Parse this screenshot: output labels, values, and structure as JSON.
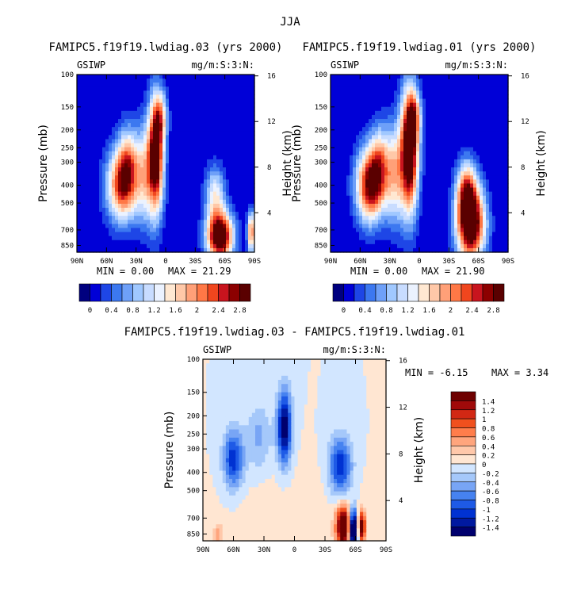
{
  "season": "JJA",
  "chart_data": [
    {
      "type": "heatmap",
      "title": "FAMIPC5.f19f19.lwdiag.03 (yrs 2000)",
      "left_label": "GSIWP",
      "right_label": "mg/m:S:3:N:",
      "ylabel": "Pressure (mb)",
      "ylabel_right": "Height (km)",
      "x_ticks": [
        "90N",
        "60N",
        "30N",
        "0",
        "30S",
        "60S",
        "90S"
      ],
      "x_values": [
        90,
        60,
        30,
        0,
        -30,
        -60,
        -90
      ],
      "y_ticks": [
        "100",
        "150",
        "200",
        "250",
        "300",
        "400",
        "500",
        "700",
        "850"
      ],
      "y_values": [
        100,
        150,
        200,
        250,
        300,
        400,
        500,
        700,
        850
      ],
      "ylim": [
        100,
        925
      ],
      "height_ticks": [
        "16",
        "12",
        "8",
        "4"
      ],
      "height_values": [
        16,
        12,
        8,
        4
      ],
      "min_text": "MIN =    0.00",
      "max_text": "MAX =   21.29",
      "min": 0.0,
      "max": 21.29,
      "colorbar_labels": [
        "0",
        "0.4",
        "0.8",
        "1.2",
        "1.6",
        "2",
        "2.4",
        "2.8"
      ],
      "levels": [
        0,
        0.2,
        0.4,
        0.6,
        0.8,
        1.0,
        1.2,
        1.4,
        1.6,
        1.8,
        2.0,
        2.2,
        2.4,
        2.6,
        2.8
      ],
      "features": [
        {
          "lat": 45,
          "p": 400,
          "amp": 2.3,
          "dlat": 15,
          "dlnp": 0.45
        },
        {
          "lat": 38,
          "p": 300,
          "amp": 1.4,
          "dlat": 10,
          "dlnp": 0.45
        },
        {
          "lat": 10,
          "p": 280,
          "amp": 3.2,
          "dlat": 8,
          "dlnp": 0.7
        },
        {
          "lat": 22,
          "p": 350,
          "amp": 1.3,
          "dlat": 10,
          "dlnp": 0.6
        },
        {
          "lat": 5,
          "p": 170,
          "amp": 1.2,
          "dlat": 7,
          "dlnp": 0.3
        },
        {
          "lat": -55,
          "p": 760,
          "amp": 3.5,
          "dlat": 13,
          "dlnp": 0.3
        },
        {
          "lat": -50,
          "p": 450,
          "amp": 1.3,
          "dlat": 10,
          "dlnp": 0.35
        },
        {
          "lat": -87,
          "p": 720,
          "amp": 2.2,
          "dlat": 4,
          "dlnp": 0.25
        }
      ]
    },
    {
      "type": "heatmap",
      "title": "FAMIPC5.f19f19.lwdiag.01 (yrs 2000)",
      "left_label": "GSIWP",
      "right_label": "mg/m:S:3:N:",
      "ylabel": "Pressure (mb)",
      "ylabel_right": "Height (km)",
      "x_ticks": [
        "90N",
        "60N",
        "30N",
        "0",
        "30S",
        "60S",
        "90S"
      ],
      "x_values": [
        90,
        60,
        30,
        0,
        -30,
        -60,
        -90
      ],
      "y_ticks": [
        "100",
        "150",
        "200",
        "250",
        "300",
        "400",
        "500",
        "700",
        "850"
      ],
      "y_values": [
        100,
        150,
        200,
        250,
        300,
        400,
        500,
        700,
        850
      ],
      "ylim": [
        100,
        925
      ],
      "height_ticks": [
        "16",
        "12",
        "8",
        "4"
      ],
      "height_values": [
        16,
        12,
        8,
        4
      ],
      "min_text": "MIN =    0.00",
      "max_text": "MAX =   21.90",
      "min": 0.0,
      "max": 21.9,
      "colorbar_labels": [
        "0",
        "0.4",
        "0.8",
        "1.2",
        "1.6",
        "2",
        "2.4",
        "2.8"
      ],
      "levels": [
        0,
        0.2,
        0.4,
        0.6,
        0.8,
        1.0,
        1.2,
        1.4,
        1.6,
        1.8,
        2.0,
        2.2,
        2.4,
        2.6,
        2.8
      ],
      "features": [
        {
          "lat": 50,
          "p": 400,
          "amp": 2.8,
          "dlat": 14,
          "dlnp": 0.45
        },
        {
          "lat": 40,
          "p": 300,
          "amp": 1.4,
          "dlat": 10,
          "dlnp": 0.45
        },
        {
          "lat": 10,
          "p": 260,
          "amp": 3.5,
          "dlat": 9,
          "dlnp": 0.75
        },
        {
          "lat": 25,
          "p": 350,
          "amp": 1.5,
          "dlat": 10,
          "dlnp": 0.6
        },
        {
          "lat": 5,
          "p": 170,
          "amp": 1.3,
          "dlat": 7,
          "dlnp": 0.3
        },
        {
          "lat": -52,
          "p": 650,
          "amp": 3.6,
          "dlat": 14,
          "dlnp": 0.45
        },
        {
          "lat": -48,
          "p": 420,
          "amp": 1.8,
          "dlat": 10,
          "dlnp": 0.35
        }
      ]
    },
    {
      "type": "heatmap",
      "title": "FAMIPC5.f19f19.lwdiag.03 - FAMIPC5.f19f19.lwdiag.01",
      "left_label": "GSIWP",
      "right_label": "mg/m:S:3:N:",
      "ylabel": "Pressure (mb)",
      "ylabel_right": "Height (km)",
      "x_ticks": [
        "90N",
        "60N",
        "30N",
        "0",
        "30S",
        "60S",
        "90S"
      ],
      "x_values": [
        90,
        60,
        30,
        0,
        -30,
        -60,
        -90
      ],
      "y_ticks": [
        "100",
        "150",
        "200",
        "250",
        "300",
        "400",
        "500",
        "700",
        "850"
      ],
      "y_values": [
        100,
        150,
        200,
        250,
        300,
        400,
        500,
        700,
        850
      ],
      "ylim": [
        100,
        925
      ],
      "height_ticks": [
        "16",
        "12",
        "8",
        "4"
      ],
      "height_values": [
        16,
        12,
        8,
        4
      ],
      "min_text": "MIN =   -6.15",
      "max_text": "MAX =    3.34",
      "min": -6.15,
      "max": 3.34,
      "colorbar_labels": [
        "1.4",
        "1.2",
        "1",
        "0.8",
        "0.6",
        "0.4",
        "0.2",
        "0",
        "-0.2",
        "-0.4",
        "-0.6",
        "-0.8",
        "-1",
        "-1.2",
        "-1.4"
      ],
      "levels": [
        -1.4,
        -1.2,
        -1.0,
        -0.8,
        -0.6,
        -0.4,
        -0.2,
        0,
        0.2,
        0.4,
        0.6,
        0.8,
        1.0,
        1.2,
        1.4
      ],
      "features": [
        {
          "lat": 60,
          "p": 340,
          "amp": -1.15,
          "dlat": 10,
          "dlnp": 0.35
        },
        {
          "lat": 10,
          "p": 230,
          "amp": -1.6,
          "dlat": 7,
          "dlnp": 0.45
        },
        {
          "lat": -45,
          "p": 370,
          "amp": -1.2,
          "dlat": 11,
          "dlnp": 0.35
        },
        {
          "lat": 35,
          "p": 260,
          "amp": -0.45,
          "dlat": 12,
          "dlnp": 0.4
        },
        {
          "lat": -58,
          "p": 820,
          "amp": -2.5,
          "dlat": 4,
          "dlnp": 0.25
        },
        {
          "lat": -48,
          "p": 780,
          "amp": 2.0,
          "dlat": 7,
          "dlnp": 0.25
        },
        {
          "lat": -66,
          "p": 780,
          "amp": 1.6,
          "dlat": 4,
          "dlnp": 0.2
        },
        {
          "lat": 0,
          "p": 650,
          "amp": 0.12,
          "dlat": 60,
          "dlnp": 0.5
        },
        {
          "lat": 75,
          "p": 860,
          "amp": 0.5,
          "dlat": 5,
          "dlnp": 0.15
        }
      ]
    }
  ]
}
